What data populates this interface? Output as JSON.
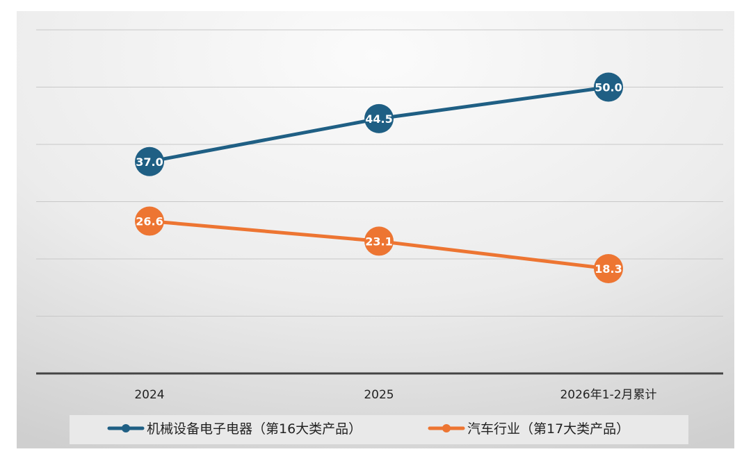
{
  "chart_data": {
    "type": "line",
    "title": "",
    "xlabel": "",
    "ylabel": "",
    "categories": [
      "2024",
      "2025",
      "2026年1-2月累计"
    ],
    "ylim": [
      0,
      60
    ],
    "grid": true,
    "legend_position": "bottom",
    "series": [
      {
        "name": "机械设备电子电器（第16大类产品）",
        "values": [
          37.0,
          44.5,
          50.0
        ],
        "labels": [
          "37.0",
          "44.5",
          "50.0"
        ],
        "color": "#1f5f84"
      },
      {
        "name": "汽车行业（第17大类产品）",
        "values": [
          26.6,
          23.1,
          18.3
        ],
        "labels": [
          "26.6",
          "23.1",
          "18.3"
        ],
        "color": "#ed7532"
      }
    ]
  },
  "colors": {
    "axis": "#444444",
    "grid": "#c8c8c8",
    "legend_bg": "#e9e9e9",
    "label_text": "#ffffff",
    "tick_text": "#222222"
  }
}
